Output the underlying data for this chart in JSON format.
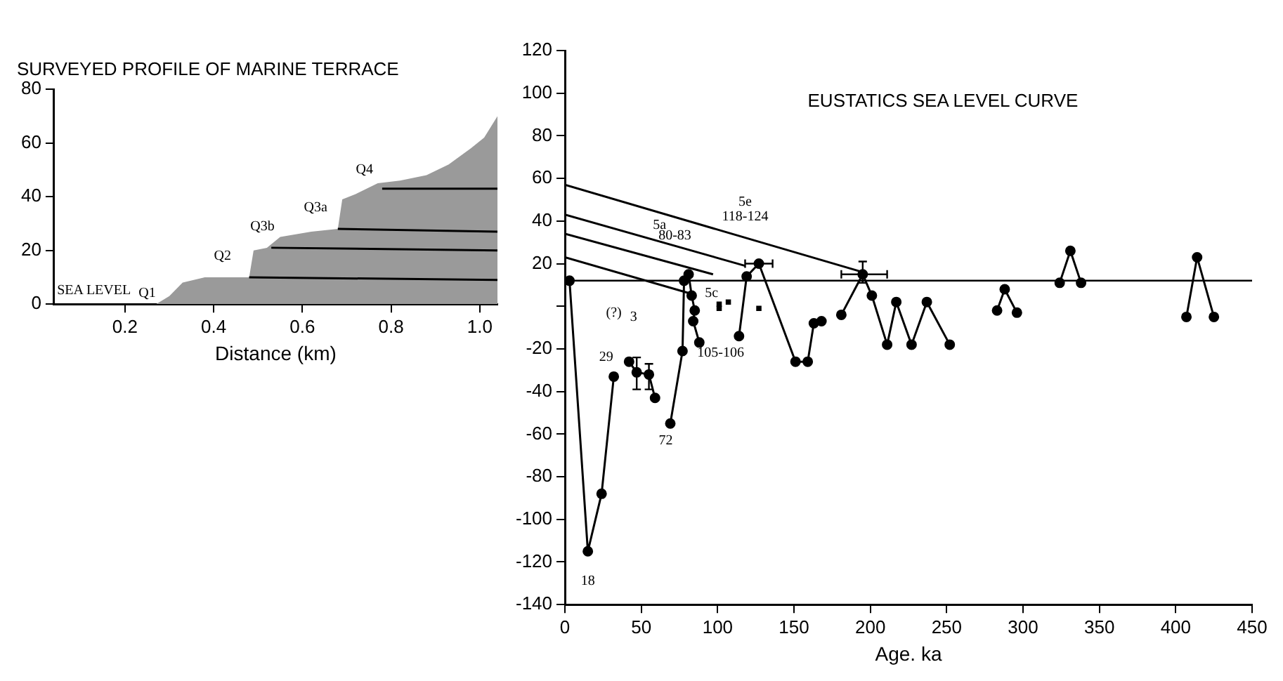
{
  "chart_data": [
    {
      "type": "area",
      "title": "SURVEYED PROFILE OF MARINE TERRACE",
      "xlabel": "Distance (km)",
      "xlim": [
        0.04,
        1.04
      ],
      "xticks": [
        0.2,
        0.4,
        0.6,
        0.8,
        {
          "value": 1,
          "label": "1.0"
        }
      ],
      "ylim": [
        0,
        80
      ],
      "yticks": [
        0,
        20,
        40,
        60,
        80
      ],
      "grid": false,
      "legend": false,
      "marker": "none",
      "series": [
        {
          "color": "#9a9a9a",
          "x": [
            0.04,
            0.27,
            0.3,
            0.33,
            0.38,
            0.44,
            0.48,
            0.49,
            0.52,
            0.55,
            0.62,
            0.68,
            0.69,
            0.72,
            0.77,
            0.82,
            0.88,
            0.93,
            0.98,
            1.01,
            1.04
          ],
          "values": [
            0,
            0,
            3,
            8,
            10,
            10,
            10,
            20,
            21,
            25,
            27,
            28,
            39,
            41,
            45,
            46,
            48,
            52,
            58,
            62,
            70
          ]
        },
        {
          "type": "line",
          "color": "#000000",
          "x": [
            0.48,
            1.04
          ],
          "values": [
            10,
            9
          ]
        },
        {
          "type": "line",
          "color": "#000000",
          "x": [
            0.53,
            1.04
          ],
          "values": [
            21,
            20
          ]
        },
        {
          "type": "line",
          "color": "#000000",
          "x": [
            0.68,
            1.04
          ],
          "values": [
            28,
            27
          ]
        },
        {
          "type": "line",
          "color": "#000000",
          "x": [
            0.78,
            1.04
          ],
          "values": [
            43,
            43
          ]
        }
      ],
      "annotations": [
        "SEA LEVEL",
        "Q1",
        "Q2",
        "Q3b",
        "Q3a",
        "Q4"
      ]
    },
    {
      "type": "line",
      "title": "EUSTATICS SEA LEVEL CURVE",
      "xlabel": "Age. ka",
      "xlim": [
        0,
        450
      ],
      "xticks": [
        0,
        50,
        100,
        150,
        200,
        250,
        300,
        350,
        400,
        450
      ],
      "ylim": [
        -140,
        120
      ],
      "yticks": [
        120,
        100,
        80,
        60,
        40,
        20,
        {
          "value": 0,
          "label": null
        },
        -20,
        -40,
        -60,
        -80,
        -100,
        -120,
        -140
      ],
      "grid": false,
      "legend": false,
      "marker": "circle",
      "ref_lines": [
        {
          "axis": "y",
          "value": 12,
          "color": "#000000"
        }
      ],
      "series": [
        {
          "color": "#000000",
          "x": [
            3,
            15,
            24,
            32
          ],
          "values": [
            12,
            -115,
            -88,
            -33
          ]
        },
        {
          "color": "#000000",
          "x": [
            42,
            47,
            55,
            59
          ],
          "values": [
            -26,
            -31,
            -32,
            -43
          ],
          "errors": [
            null,
            [
              -39,
              -24
            ],
            [
              -39,
              -27
            ],
            null
          ]
        },
        {
          "color": "#000000",
          "x": [
            69,
            77,
            78,
            81,
            83,
            85,
            84,
            88
          ],
          "values": [
            -55,
            -21,
            12,
            15,
            5,
            -2,
            -7,
            -17
          ]
        },
        {
          "type": "scatter",
          "color": "#000000",
          "marker": "square",
          "x": [
            101,
            101,
            107,
            127
          ],
          "values": [
            1,
            -1,
            2,
            -1
          ]
        },
        {
          "color": "#000000",
          "x": [
            114,
            119,
            127,
            151,
            159,
            163,
            168
          ],
          "values": [
            -14,
            14,
            20,
            -26,
            -26,
            -8,
            -7
          ],
          "xerrors": [
            null,
            null,
            [
              118,
              136
            ],
            null,
            null,
            null,
            null
          ]
        },
        {
          "color": "#000000",
          "x": [
            181,
            195,
            201,
            211,
            217,
            227,
            237,
            252
          ],
          "values": [
            -4,
            15,
            5,
            -18,
            2,
            -18,
            2,
            -18
          ],
          "xerrors": [
            null,
            [
              181,
              211
            ],
            null,
            null,
            null,
            null,
            null,
            null
          ],
          "errors": [
            null,
            [
              11,
              21
            ],
            null,
            null,
            null,
            null,
            null,
            null
          ]
        },
        {
          "color": "#000000",
          "x": [
            283,
            288,
            296
          ],
          "values": [
            -2,
            8,
            -3
          ]
        },
        {
          "color": "#000000",
          "x": [
            324,
            331,
            338
          ],
          "values": [
            11,
            26,
            11
          ]
        },
        {
          "color": "#000000",
          "x": [
            407,
            414,
            425
          ],
          "values": [
            -5,
            23,
            -5
          ]
        },
        {
          "color": "#000000",
          "marker": "none",
          "x": [
            0,
            195
          ],
          "values": [
            57,
            16
          ]
        },
        {
          "color": "#000000",
          "marker": "none",
          "x": [
            0,
            118
          ],
          "values": [
            43,
            19
          ]
        },
        {
          "color": "#000000",
          "marker": "none",
          "x": [
            0,
            97
          ],
          "values": [
            34,
            15
          ]
        },
        {
          "color": "#000000",
          "marker": "none",
          "x": [
            0,
            82
          ],
          "values": [
            23,
            6
          ]
        }
      ],
      "annotations": [
        "18",
        "29",
        "3",
        "(?)",
        "72",
        "5a",
        "80-83",
        "5c",
        "105-106",
        "5e",
        "118-124"
      ]
    }
  ]
}
